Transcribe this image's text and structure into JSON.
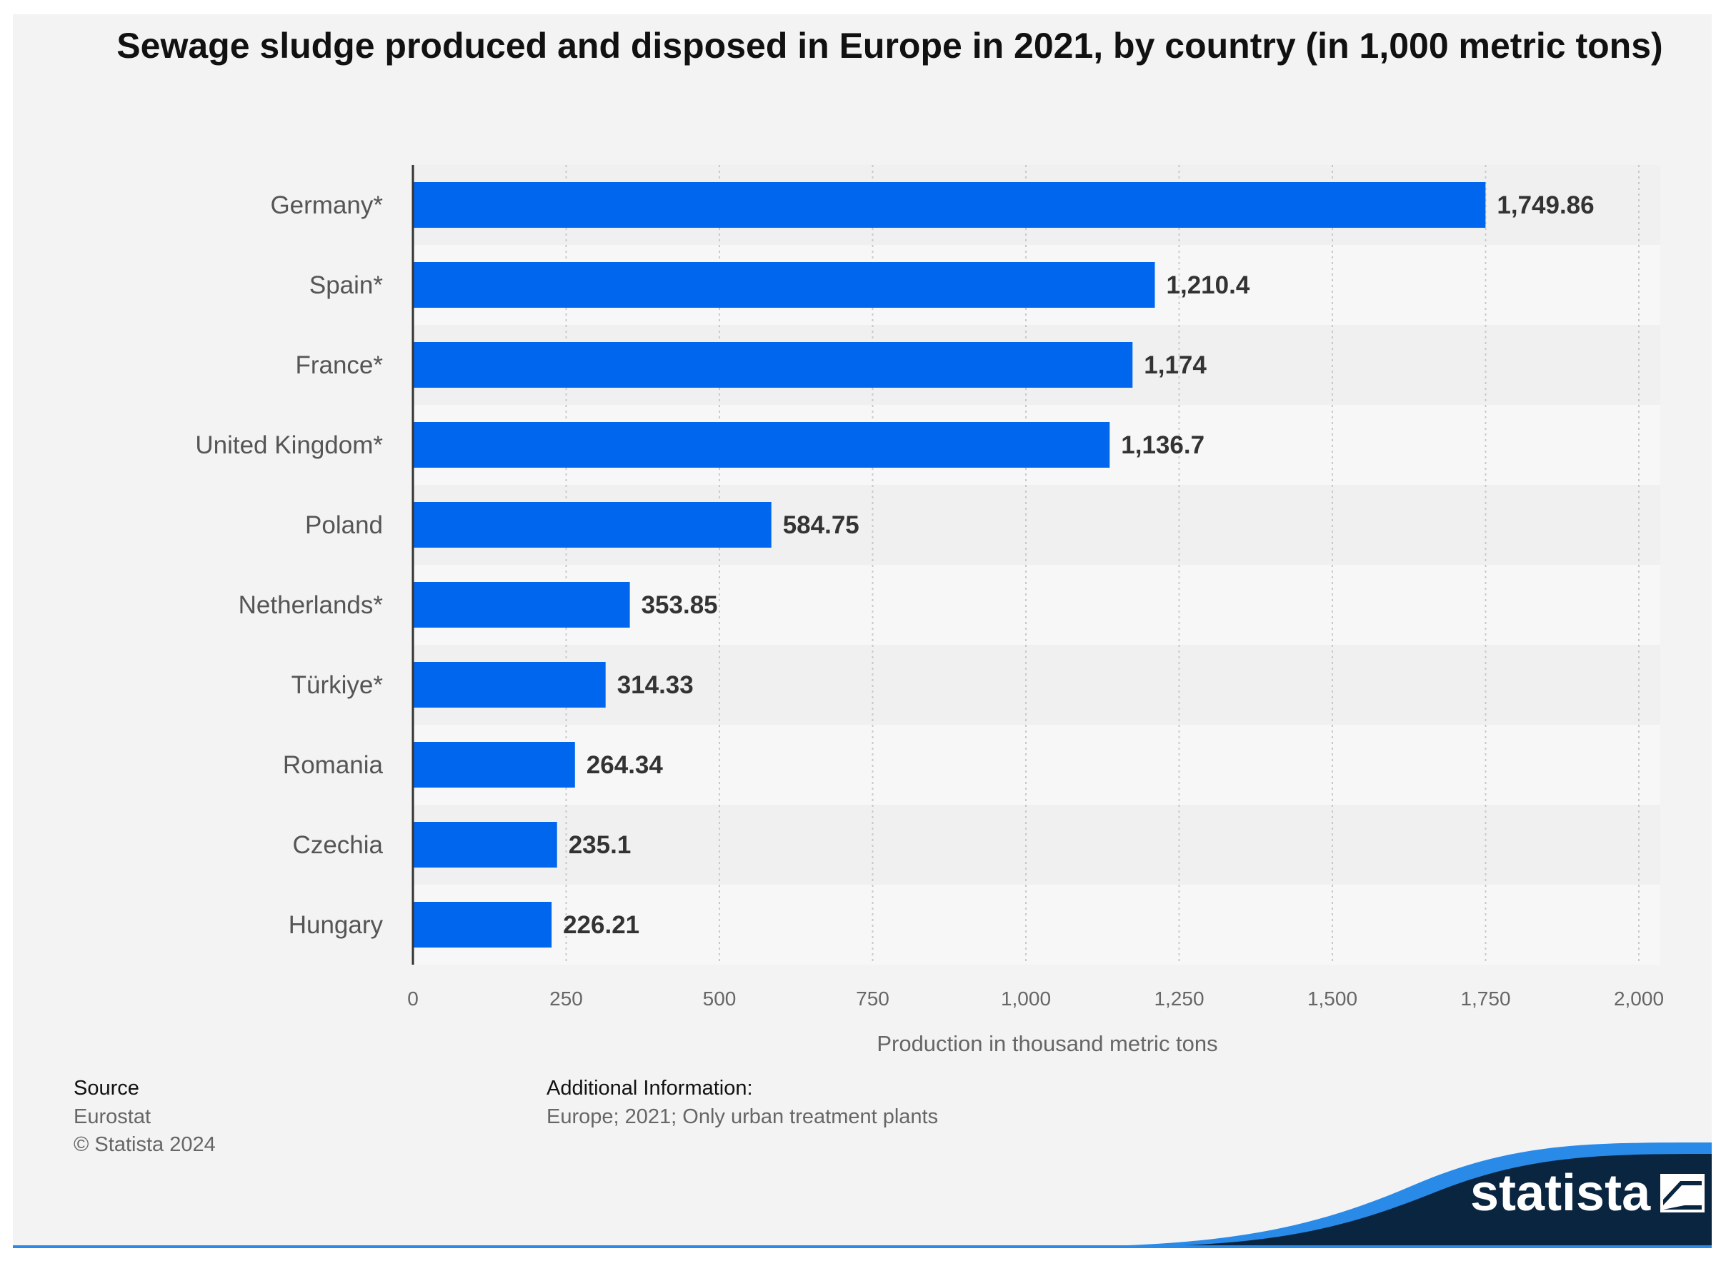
{
  "chart_data": {
    "type": "bar",
    "orientation": "horizontal",
    "title": "Sewage sludge produced and disposed in Europe in 2021, by country (in 1,000 metric tons)",
    "categories": [
      "Germany*",
      "Spain*",
      "France*",
      "United Kingdom*",
      "Poland",
      "Netherlands*",
      "Türkiye*",
      "Romania",
      "Czechia",
      "Hungary"
    ],
    "values": [
      1749.86,
      1210.4,
      1174,
      1136.7,
      584.75,
      353.85,
      314.33,
      264.34,
      235.1,
      226.21
    ],
    "value_labels": [
      "1,749.86",
      "1,210.4",
      "1,174",
      "1,136.7",
      "584.75",
      "353.85",
      "314.33",
      "264.34",
      "235.1",
      "226.21"
    ],
    "xlabel": "Production in thousand metric tons",
    "ylabel": "",
    "xlim": [
      0,
      2000
    ],
    "ticks": [
      0,
      250,
      500,
      750,
      1000,
      1250,
      1500,
      1750,
      2000
    ],
    "tick_labels": [
      "0",
      "250",
      "500",
      "750",
      "1,000",
      "1,250",
      "1,500",
      "1,750",
      "2,000"
    ],
    "grid": "vertical dotted",
    "bar_color": "#0066ee"
  },
  "footer": {
    "source_heading": "Source",
    "source": "Eurostat",
    "copyright": "© Statista 2024",
    "info_heading": "Additional Information:",
    "info": "Europe; 2021; Only urban treatment plants"
  },
  "brand": {
    "name": "statista",
    "icon": "statista-logo-icon",
    "color": "#0a2540"
  }
}
